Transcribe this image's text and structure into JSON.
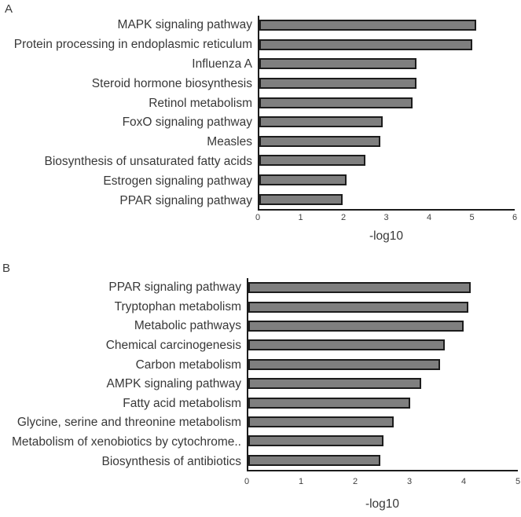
{
  "colors": {
    "bar_fill": "#7f7f7f",
    "bar_border": "#1c1c1c",
    "axis": "#1c1c1c",
    "text": "#383838"
  },
  "chart_data": [
    {
      "type": "bar",
      "orientation": "horizontal",
      "panel_label": "A",
      "categories": [
        "MAPK signaling pathway",
        "Protein processing in endoplasmic reticulum",
        "Influenza A",
        "Steroid hormone biosynthesis",
        "Retinol metabolism",
        "FoxO signaling pathway",
        "Measles",
        "Biosynthesis of unsaturated fatty acids",
        "Estrogen signaling pathway",
        "PPAR signaling pathway"
      ],
      "values": [
        5.1,
        5.0,
        3.7,
        3.7,
        3.6,
        2.9,
        2.85,
        2.5,
        2.05,
        1.95
      ],
      "xlabel": "-log10",
      "xlim": [
        0,
        6
      ],
      "xticks": [
        0,
        1,
        2,
        3,
        4,
        5,
        6
      ],
      "grid": false,
      "legend": null
    },
    {
      "type": "bar",
      "orientation": "horizontal",
      "panel_label": "B",
      "categories": [
        "PPAR signaling pathway",
        "Tryptophan metabolism",
        "Metabolic pathways",
        "Chemical carcinogenesis",
        "Carbon metabolism",
        "AMPK signaling pathway",
        "Fatty acid metabolism",
        "Glycine, serine and threonine metabolism",
        "Metabolism of xenobiotics by cytochrome..",
        "Biosynthesis of antibiotics"
      ],
      "values": [
        4.13,
        4.08,
        4.0,
        3.65,
        3.55,
        3.2,
        3.0,
        2.7,
        2.5,
        2.45
      ],
      "xlabel": "-log10",
      "xlim": [
        0,
        5
      ],
      "xticks": [
        0,
        1,
        2,
        3,
        4,
        5
      ],
      "grid": false,
      "legend": null
    }
  ]
}
